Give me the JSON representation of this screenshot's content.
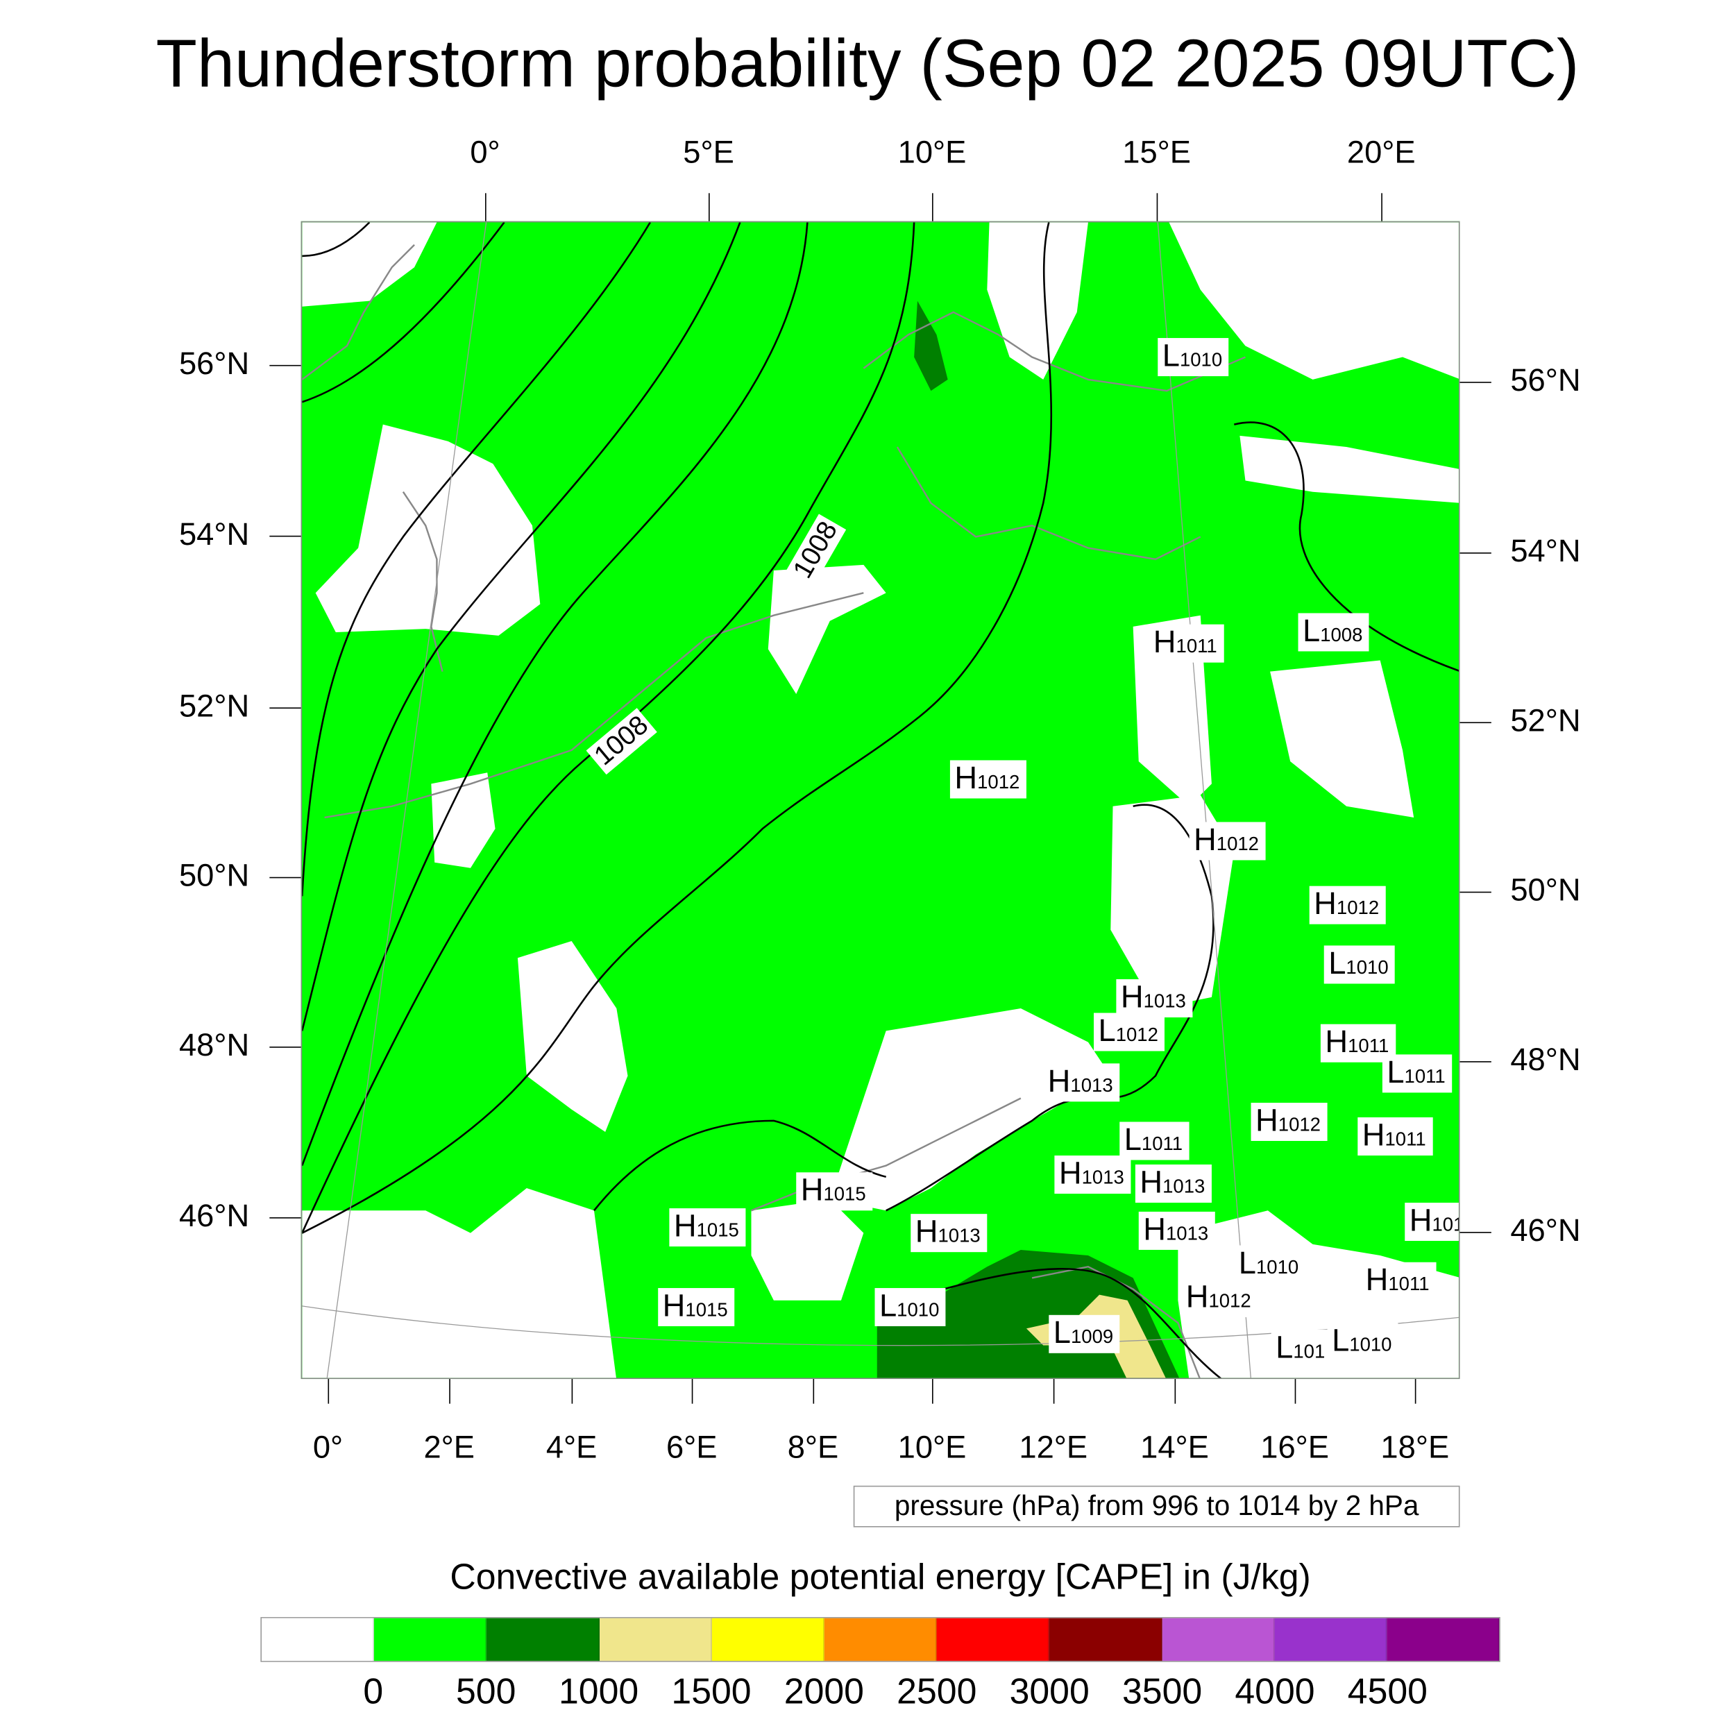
{
  "title": "Thunderstorm probability (Sep 02 2025 09UTC)",
  "axes": {
    "top_lon_labels": [
      "0°",
      "5°E",
      "10°E",
      "15°E",
      "20°E"
    ],
    "bottom_lon_labels": [
      "0°",
      "2°E",
      "4°E",
      "6°E",
      "8°E",
      "10°E",
      "12°E",
      "14°E",
      "16°E",
      "18°E"
    ],
    "left_lat_labels": [
      "56°N",
      "54°N",
      "52°N",
      "50°N",
      "48°N",
      "46°N"
    ],
    "right_lat_labels": [
      "56°N",
      "54°N",
      "52°N",
      "50°N",
      "48°N",
      "46°N"
    ]
  },
  "contour_labels": [
    "1008",
    "1008"
  ],
  "pressure_centers": [
    {
      "letter": "L",
      "value": "1010"
    },
    {
      "letter": "H",
      "value": "1011"
    },
    {
      "letter": "L",
      "value": "1008"
    },
    {
      "letter": "H",
      "value": "1012"
    },
    {
      "letter": "H",
      "value": "1012"
    },
    {
      "letter": "H",
      "value": "1012"
    },
    {
      "letter": "L",
      "value": "1010"
    },
    {
      "letter": "H",
      "value": "1013"
    },
    {
      "letter": "L",
      "value": "1012"
    },
    {
      "letter": "H",
      "value": "1011"
    },
    {
      "letter": "L",
      "value": "1011"
    },
    {
      "letter": "H",
      "value": "1013"
    },
    {
      "letter": "H",
      "value": "1012"
    },
    {
      "letter": "H",
      "value": "1011"
    },
    {
      "letter": "L",
      "value": "1011"
    },
    {
      "letter": "H",
      "value": "1013"
    },
    {
      "letter": "H",
      "value": "1013"
    },
    {
      "letter": "H",
      "value": "1015"
    },
    {
      "letter": "H",
      "value": "101"
    },
    {
      "letter": "H",
      "value": "1015"
    },
    {
      "letter": "H",
      "value": "1013"
    },
    {
      "letter": "H",
      "value": "1013"
    },
    {
      "letter": "L",
      "value": "1010"
    },
    {
      "letter": "H",
      "value": "1011"
    },
    {
      "letter": "H",
      "value": "1012"
    },
    {
      "letter": "H",
      "value": "1015"
    },
    {
      "letter": "L",
      "value": "1010"
    },
    {
      "letter": "L",
      "value": "1009"
    },
    {
      "letter": "L",
      "value": "101"
    },
    {
      "letter": "L",
      "value": "1010"
    }
  ],
  "contour_info": "pressure (hPa) from 996 to 1014 by 2 hPa",
  "colorbar": {
    "title": "Convective available potential energy [CAPE] in (J/kg)",
    "ticks": [
      "0",
      "500",
      "1000",
      "1500",
      "2000",
      "2500",
      "3000",
      "3500",
      "4000",
      "4500"
    ],
    "colors": [
      "#ffffff",
      "#00ff00",
      "#008000",
      "#f0e68c",
      "#ffff00",
      "#ff8c00",
      "#ff0000",
      "#8b0000",
      "#ba55d3",
      "#9932cc",
      "#8b008b"
    ]
  }
}
